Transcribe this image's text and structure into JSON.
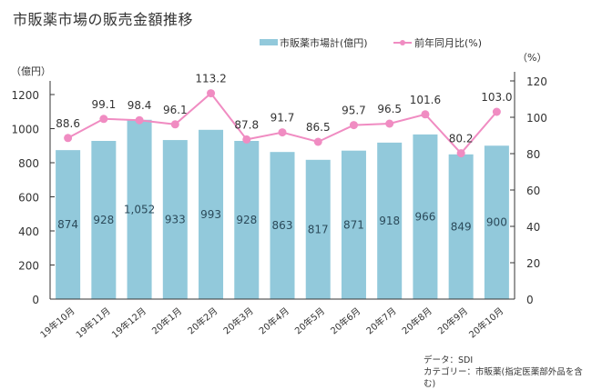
{
  "title": "市販薬市場の販売金額推移",
  "legend": {
    "bar_label": "市販薬市場計(億円)",
    "line_label": "前年同月比(%)"
  },
  "notes": {
    "source": "データ：SDI",
    "category": "カテゴリー：市販薬(指定医薬部外品を含む)"
  },
  "colors": {
    "bar": "#92c9db",
    "line": "#f08cc2",
    "axis": "#333333"
  },
  "chart_data": {
    "type": "bar",
    "title": "市販薬市場の販売金額推移",
    "categories": [
      "19年10月",
      "19年11月",
      "19年12月",
      "20年1月",
      "20年2月",
      "20年3月",
      "20年4月",
      "20年5月",
      "20年6月",
      "20年7月",
      "20年8月",
      "20年9月",
      "20年10月"
    ],
    "series": [
      {
        "name": "市販薬市場計(億円)",
        "type": "bar",
        "axis": "left",
        "values": [
          874,
          928,
          1052,
          933,
          993,
          928,
          863,
          817,
          871,
          918,
          966,
          849,
          900
        ],
        "labels": [
          "874",
          "928",
          "1,052",
          "933",
          "993",
          "928",
          "863",
          "817",
          "871",
          "918",
          "966",
          "849",
          "900"
        ]
      },
      {
        "name": "前年同月比(%)",
        "type": "line",
        "axis": "right",
        "values": [
          88.6,
          99.1,
          98.4,
          96.1,
          113.2,
          87.8,
          91.7,
          86.5,
          95.7,
          96.5,
          101.6,
          80.2,
          103.0
        ],
        "labels": [
          "88.6",
          "99.1",
          "98.4",
          "96.1",
          "113.2",
          "87.8",
          "91.7",
          "86.5",
          "95.7",
          "96.5",
          "101.6",
          "80.2",
          "103.0"
        ]
      }
    ],
    "left_axis": {
      "unit": "（億円）",
      "ylim": [
        0,
        1280
      ],
      "ticks": [
        0,
        200,
        400,
        600,
        800,
        1000,
        1200
      ]
    },
    "right_axis": {
      "unit": "（%）",
      "ylim": [
        0,
        120
      ],
      "ticks": [
        0,
        20,
        40,
        60,
        80,
        100,
        120
      ]
    },
    "grid": false,
    "legend_position": "top-right"
  }
}
